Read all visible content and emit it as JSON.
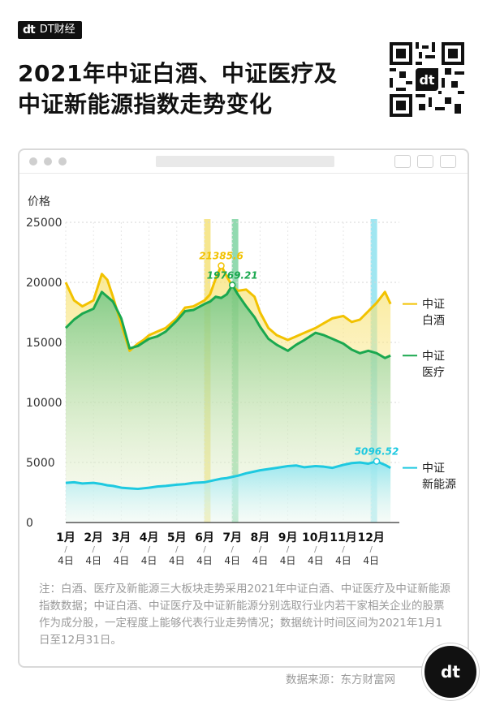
{
  "brand": {
    "mark": "dt",
    "name": "DT财经"
  },
  "title": "2021年中证白酒、中证医疗及中证新能源指数走势变化",
  "note": "注：白酒、医疗及新能源三大板块走势采用2021年中证白酒、中证医疗及中证新能源指数数据；中证白酒、中证医疗及中证新能源分别选取行业内若干家相关企业的股票作为成分股，一定程度上能够代表行业走势情况；数据统计时间区间为2021年1月1日至12月31日。",
  "source": "数据来源：东方财富网",
  "corner_logo": "dt",
  "colors": {
    "baijiu": "#f2c200",
    "yiliao": "#1aa84f",
    "xinnengyuan": "#1ec9e0",
    "hl_yellow": "#f5e27a",
    "hl_green": "#7fd3a2",
    "hl_cyan": "#8fe2ee"
  },
  "chart_data": {
    "type": "line",
    "ylabel": "价格",
    "ylim": [
      0,
      25000
    ],
    "yticks": [
      "25000",
      "20000",
      "15000",
      "10000",
      "5000",
      "0"
    ],
    "xticks": [
      {
        "month": "1月",
        "day": "4日"
      },
      {
        "month": "2月",
        "day": "4日"
      },
      {
        "month": "3月",
        "day": "4日"
      },
      {
        "month": "4月",
        "day": "4日"
      },
      {
        "month": "5月",
        "day": "4日"
      },
      {
        "month": "6月",
        "day": "4日"
      },
      {
        "month": "7月",
        "day": "4日"
      },
      {
        "month": "8月",
        "day": "4日"
      },
      {
        "month": "9月",
        "day": "4日"
      },
      {
        "month": "10月",
        "day": "4日"
      },
      {
        "month": "11月",
        "day": "4日"
      },
      {
        "month": "12月",
        "day": "4日"
      }
    ],
    "tick_sep": "/",
    "x": [
      0,
      0.3,
      0.6,
      1,
      1.3,
      1.5,
      1.7,
      2,
      2.3,
      2.6,
      2.8,
      3,
      3.3,
      3.6,
      4,
      4.3,
      4.6,
      5,
      5.2,
      5.4,
      5.6,
      5.8,
      6,
      6.2,
      6.5,
      6.8,
      7,
      7.3,
      7.6,
      8,
      8.3,
      8.6,
      9,
      9.3,
      9.6,
      10,
      10.3,
      10.6,
      10.9,
      11.2,
      11.5,
      11.7
    ],
    "series": [
      {
        "name": "中证白酒",
        "label_lines": [
          "中证",
          "白酒"
        ],
        "values": [
          20000,
          18500,
          18000,
          18500,
          20700,
          20200,
          18800,
          16500,
          14300,
          14900,
          15200,
          15600,
          15900,
          16200,
          17000,
          17900,
          18000,
          18500,
          19000,
          20300,
          21385.6,
          20500,
          19700,
          19300,
          19400,
          18800,
          17500,
          16200,
          15600,
          15200,
          15500,
          15800,
          16200,
          16600,
          17000,
          17200,
          16700,
          16900,
          17600,
          18300,
          19200,
          18200
        ]
      },
      {
        "name": "中证医疗",
        "label_lines": [
          "中证",
          "医疗"
        ],
        "values": [
          16200,
          16900,
          17400,
          17800,
          19200,
          18800,
          18400,
          17000,
          14500,
          14700,
          15000,
          15300,
          15500,
          15900,
          16800,
          17600,
          17700,
          18200,
          18400,
          18800,
          18700,
          19000,
          19769.21,
          19000,
          18000,
          17100,
          16300,
          15300,
          14800,
          14300,
          14800,
          15200,
          15800,
          15600,
          15300,
          14900,
          14400,
          14100,
          14300,
          14100,
          13700,
          13900
        ]
      },
      {
        "name": "中证新能源",
        "label_lines": [
          "中证",
          "新能源"
        ],
        "values": [
          3300,
          3350,
          3250,
          3300,
          3200,
          3100,
          3050,
          2900,
          2850,
          2800,
          2850,
          2900,
          3000,
          3050,
          3150,
          3200,
          3300,
          3350,
          3450,
          3550,
          3650,
          3700,
          3800,
          3900,
          4100,
          4250,
          4350,
          4450,
          4550,
          4700,
          4750,
          4600,
          4700,
          4650,
          4550,
          4800,
          4950,
          5000,
          4900,
          5096.52,
          4800,
          4550
        ]
      }
    ],
    "annotations": [
      {
        "series": 0,
        "index": 20,
        "text": "21385.6"
      },
      {
        "series": 1,
        "index": 22,
        "text": "19769.21"
      },
      {
        "series": 2,
        "index": 39,
        "text": "5096.52"
      }
    ],
    "highlights": [
      {
        "x": 5.1,
        "color": "hl_yellow"
      },
      {
        "x": 6.1,
        "color": "hl_green"
      },
      {
        "x": 11.1,
        "color": "hl_cyan"
      }
    ]
  }
}
